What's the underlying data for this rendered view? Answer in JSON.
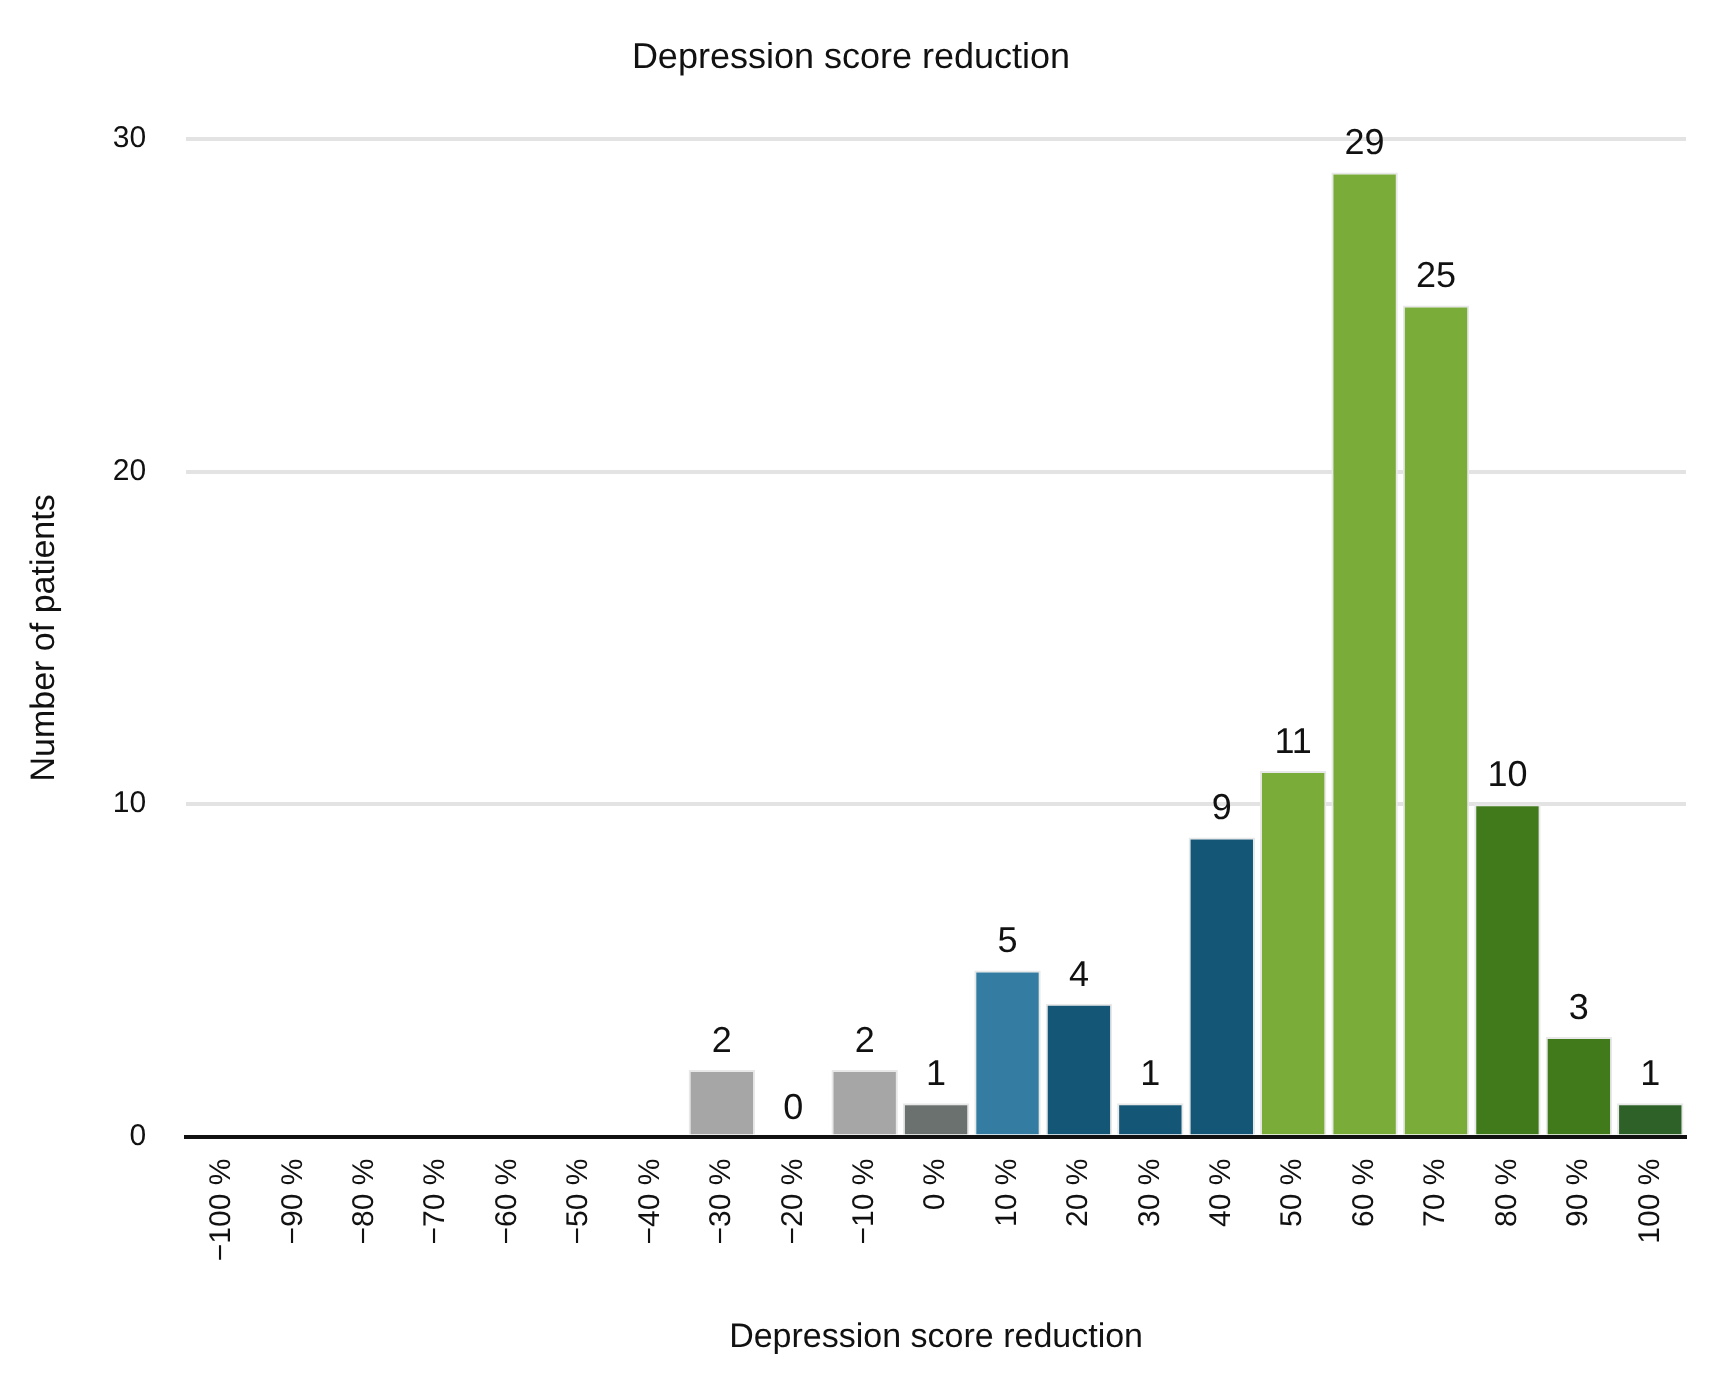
{
  "chart_data": {
    "type": "bar",
    "title": "Depression score reduction",
    "xlabel": "Depression score reduction",
    "ylabel": "Number of patients",
    "categories": [
      "−100 %",
      "−90 %",
      "−80 %",
      "−70 %",
      "−60 %",
      "−50 %",
      "−40 %",
      "−30 %",
      "−20 %",
      "−10 %",
      "0 %",
      "10 %",
      "20 %",
      "30 %",
      "40 %",
      "50 %",
      "60 %",
      "70 %",
      "80 %",
      "90 %",
      "100 %"
    ],
    "values": [
      null,
      null,
      null,
      null,
      null,
      null,
      null,
      2,
      0,
      2,
      1,
      5,
      4,
      1,
      9,
      11,
      29,
      25,
      10,
      3,
      1
    ],
    "colors": [
      "#a6a6a6",
      "#a6a6a6",
      "#a6a6a6",
      "#a6a6a6",
      "#a6a6a6",
      "#a6a6a6",
      "#a6a6a6",
      "#a6a6a6",
      "#a6a6a6",
      "#a6a6a6",
      "#6b716f",
      "#347ca2",
      "#135676",
      "#135676",
      "#135676",
      "#7aac3a",
      "#7aac3a",
      "#7aac3a",
      "#417a1b",
      "#417a1b",
      "#2e6128"
    ],
    "ylim": [
      0,
      30
    ],
    "yticks": [
      0,
      10,
      20,
      30
    ],
    "grid": "y",
    "data_labels": true,
    "legend": false
  }
}
